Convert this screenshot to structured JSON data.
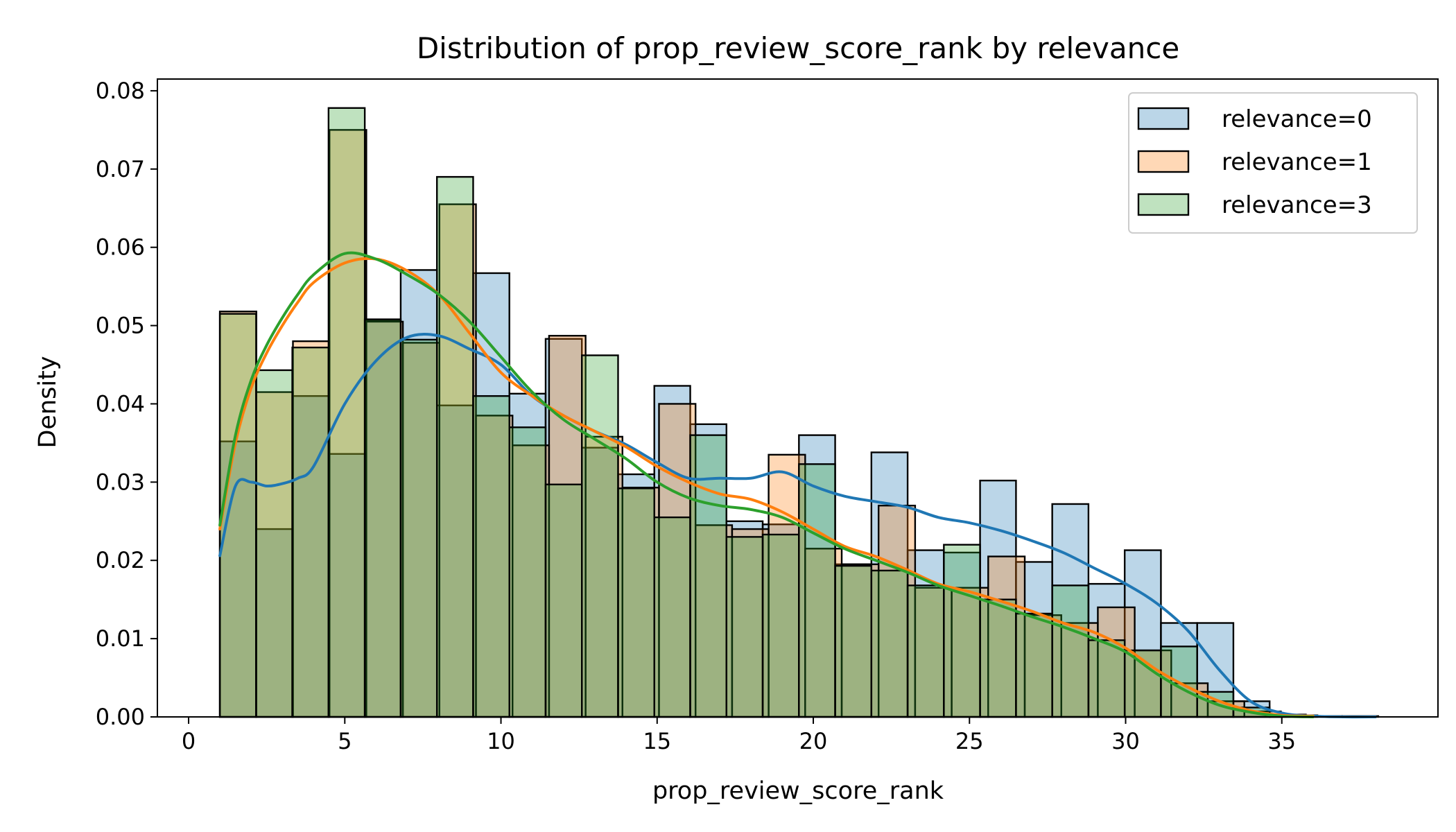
{
  "chart_data": {
    "type": "bar",
    "title": "Distribution of prop_review_score_rank by relevance",
    "xlabel": "prop_review_score_rank",
    "ylabel": "Density",
    "xlim": [
      -1,
      40
    ],
    "ylim": [
      0,
      0.0815
    ],
    "x_ticks": [
      0,
      5,
      10,
      15,
      20,
      25,
      30,
      35
    ],
    "y_ticks": [
      0.0,
      0.01,
      0.02,
      0.03,
      0.04,
      0.05,
      0.06,
      0.07,
      0.08
    ],
    "y_tick_labels": [
      "0.00",
      "0.01",
      "0.02",
      "0.03",
      "0.04",
      "0.05",
      "0.06",
      "0.07",
      "0.08"
    ],
    "legend_position": "top-right",
    "grid": false,
    "series": [
      {
        "name": "relevance=0",
        "color": "#1f77b4",
        "bins": [
          [
            1.0,
            2.16,
            0.0352
          ],
          [
            2.16,
            3.32,
            0.024
          ],
          [
            3.32,
            4.48,
            0.041
          ],
          [
            4.48,
            5.64,
            0.0336
          ],
          [
            5.64,
            6.79,
            0.0506
          ],
          [
            6.79,
            7.95,
            0.0571
          ],
          [
            7.95,
            9.11,
            0.0398
          ],
          [
            9.11,
            10.27,
            0.0567
          ],
          [
            10.27,
            11.43,
            0.0413
          ],
          [
            11.43,
            12.59,
            0.0483
          ],
          [
            12.59,
            13.75,
            0.0344
          ],
          [
            13.75,
            14.91,
            0.031
          ],
          [
            14.91,
            16.06,
            0.0423
          ],
          [
            16.06,
            17.22,
            0.0374
          ],
          [
            17.22,
            18.38,
            0.025
          ],
          [
            18.38,
            19.54,
            0.0246
          ],
          [
            19.54,
            20.7,
            0.036
          ],
          [
            20.7,
            21.86,
            0.0195
          ],
          [
            21.86,
            23.02,
            0.0338
          ],
          [
            23.02,
            24.18,
            0.0213
          ],
          [
            24.18,
            25.34,
            0.021
          ],
          [
            25.34,
            26.49,
            0.0302
          ],
          [
            26.49,
            27.65,
            0.0198
          ],
          [
            27.65,
            28.81,
            0.0272
          ],
          [
            28.81,
            29.97,
            0.017
          ],
          [
            29.97,
            31.13,
            0.0213
          ],
          [
            31.13,
            32.29,
            0.012
          ],
          [
            32.29,
            33.45,
            0.012
          ],
          [
            33.45,
            34.61,
            0.002
          ],
          [
            34.61,
            35.77,
            0.0002
          ],
          [
            35.77,
            36.93,
            0.0001
          ],
          [
            36.93,
            38.09,
            0.0001
          ]
        ],
        "kde_x": [
          1,
          1.5,
          2,
          2.5,
          3,
          3.5,
          4,
          5,
          6,
          7,
          8,
          9,
          10,
          11,
          12,
          13,
          14,
          15,
          16,
          17,
          18,
          19,
          20,
          21,
          22,
          23,
          24,
          25,
          26,
          27,
          28,
          29,
          30,
          31,
          32,
          33,
          34,
          35,
          36,
          37,
          38
        ],
        "kde_y": [
          0.0206,
          0.0295,
          0.03,
          0.0295,
          0.0298,
          0.0305,
          0.032,
          0.04,
          0.0455,
          0.0485,
          0.0487,
          0.047,
          0.045,
          0.041,
          0.0385,
          0.0365,
          0.0348,
          0.0325,
          0.0305,
          0.0305,
          0.0305,
          0.0313,
          0.0295,
          0.0282,
          0.0275,
          0.0268,
          0.0255,
          0.0248,
          0.0238,
          0.0225,
          0.021,
          0.019,
          0.017,
          0.0145,
          0.011,
          0.006,
          0.002,
          0.0005,
          0.0001,
          0.0,
          0.0
        ]
      },
      {
        "name": "relevance=1",
        "color": "#ff7f0e",
        "bins": [
          [
            1.0,
            2.17,
            0.0518
          ],
          [
            2.17,
            3.34,
            0.0415
          ],
          [
            3.34,
            4.51,
            0.048
          ],
          [
            4.51,
            5.69,
            0.075
          ],
          [
            5.69,
            6.86,
            0.0505
          ],
          [
            6.86,
            8.03,
            0.0478
          ],
          [
            8.03,
            9.2,
            0.0655
          ],
          [
            9.2,
            10.37,
            0.0385
          ],
          [
            10.37,
            11.54,
            0.0347
          ],
          [
            11.54,
            12.71,
            0.0487
          ],
          [
            12.71,
            13.89,
            0.0358
          ],
          [
            13.89,
            15.06,
            0.0293
          ],
          [
            15.06,
            16.23,
            0.04
          ],
          [
            16.23,
            17.4,
            0.0245
          ],
          [
            17.4,
            18.57,
            0.024
          ],
          [
            18.57,
            19.74,
            0.0335
          ],
          [
            19.74,
            20.91,
            0.0215
          ],
          [
            20.91,
            22.09,
            0.0195
          ],
          [
            22.09,
            23.26,
            0.027
          ],
          [
            23.26,
            24.43,
            0.0165
          ],
          [
            24.43,
            25.6,
            0.0165
          ],
          [
            25.6,
            26.77,
            0.0205
          ],
          [
            26.77,
            27.94,
            0.013
          ],
          [
            27.94,
            29.11,
            0.012
          ],
          [
            29.11,
            30.29,
            0.014
          ],
          [
            30.29,
            31.46,
            0.0085
          ],
          [
            31.46,
            32.63,
            0.0043
          ],
          [
            32.63,
            33.8,
            0.002
          ],
          [
            33.8,
            34.97,
            0.0007
          ],
          [
            34.97,
            36.14,
            0.0002
          ]
        ],
        "kde_x": [
          1,
          1.5,
          2,
          2.5,
          3,
          3.5,
          4,
          5,
          6,
          7,
          8,
          9,
          10,
          11,
          12,
          13,
          14,
          15,
          16,
          17,
          18,
          19,
          20,
          21,
          22,
          23,
          24,
          25,
          26,
          27,
          28,
          29,
          30,
          31,
          32,
          33,
          34,
          35,
          36
        ],
        "kde_y": [
          0.024,
          0.035,
          0.042,
          0.0465,
          0.05,
          0.053,
          0.0555,
          0.058,
          0.0585,
          0.057,
          0.054,
          0.049,
          0.044,
          0.041,
          0.0385,
          0.0365,
          0.0345,
          0.032,
          0.03,
          0.0285,
          0.0278,
          0.0262,
          0.024,
          0.0218,
          0.0205,
          0.0188,
          0.017,
          0.016,
          0.0148,
          0.0135,
          0.012,
          0.0108,
          0.0088,
          0.006,
          0.0038,
          0.002,
          0.0008,
          0.0002,
          0.0001
        ]
      },
      {
        "name": "relevance=3",
        "color": "#2ca02c",
        "bins": [
          [
            1.0,
            2.16,
            0.0515
          ],
          [
            2.16,
            3.32,
            0.0443
          ],
          [
            3.32,
            4.48,
            0.0472
          ],
          [
            4.48,
            5.64,
            0.0778
          ],
          [
            5.64,
            6.79,
            0.0508
          ],
          [
            6.79,
            7.95,
            0.0482
          ],
          [
            7.95,
            9.11,
            0.069
          ],
          [
            9.11,
            10.27,
            0.041
          ],
          [
            10.27,
            11.43,
            0.037
          ],
          [
            11.43,
            12.59,
            0.0297
          ],
          [
            12.59,
            13.75,
            0.0462
          ],
          [
            13.75,
            14.91,
            0.0292
          ],
          [
            14.91,
            16.06,
            0.0255
          ],
          [
            16.06,
            17.22,
            0.036
          ],
          [
            17.22,
            18.38,
            0.023
          ],
          [
            18.38,
            19.54,
            0.0233
          ],
          [
            19.54,
            20.7,
            0.0323
          ],
          [
            20.7,
            21.86,
            0.0193
          ],
          [
            21.86,
            23.02,
            0.0187
          ],
          [
            23.02,
            24.18,
            0.0168
          ],
          [
            24.18,
            25.34,
            0.022
          ],
          [
            25.34,
            26.49,
            0.015
          ],
          [
            26.49,
            27.65,
            0.0132
          ],
          [
            27.65,
            28.81,
            0.0168
          ],
          [
            28.81,
            29.97,
            0.0098
          ],
          [
            29.97,
            31.13,
            0.0085
          ],
          [
            31.13,
            32.29,
            0.009
          ],
          [
            32.29,
            33.45,
            0.0032
          ],
          [
            33.45,
            34.61,
            0.0012
          ],
          [
            34.61,
            35.77,
            0.0003
          ]
        ],
        "kde_x": [
          1,
          1.5,
          2,
          2.5,
          3,
          3.5,
          4,
          5,
          6,
          7,
          8,
          9,
          10,
          11,
          12,
          13,
          14,
          15,
          16,
          17,
          18,
          19,
          20,
          21,
          22,
          23,
          24,
          25,
          26,
          27,
          28,
          29,
          30,
          31,
          32,
          33,
          34,
          35,
          36
        ],
        "kde_y": [
          0.0245,
          0.036,
          0.043,
          0.0475,
          0.051,
          0.054,
          0.0565,
          0.0592,
          0.0585,
          0.0565,
          0.054,
          0.0505,
          0.046,
          0.0415,
          0.038,
          0.0355,
          0.033,
          0.03,
          0.028,
          0.027,
          0.0265,
          0.0255,
          0.0235,
          0.0215,
          0.02,
          0.0185,
          0.0168,
          0.0155,
          0.0142,
          0.0128,
          0.0115,
          0.01,
          0.0083,
          0.0055,
          0.0032,
          0.0015,
          0.0006,
          0.0001,
          0.0
        ]
      }
    ]
  }
}
